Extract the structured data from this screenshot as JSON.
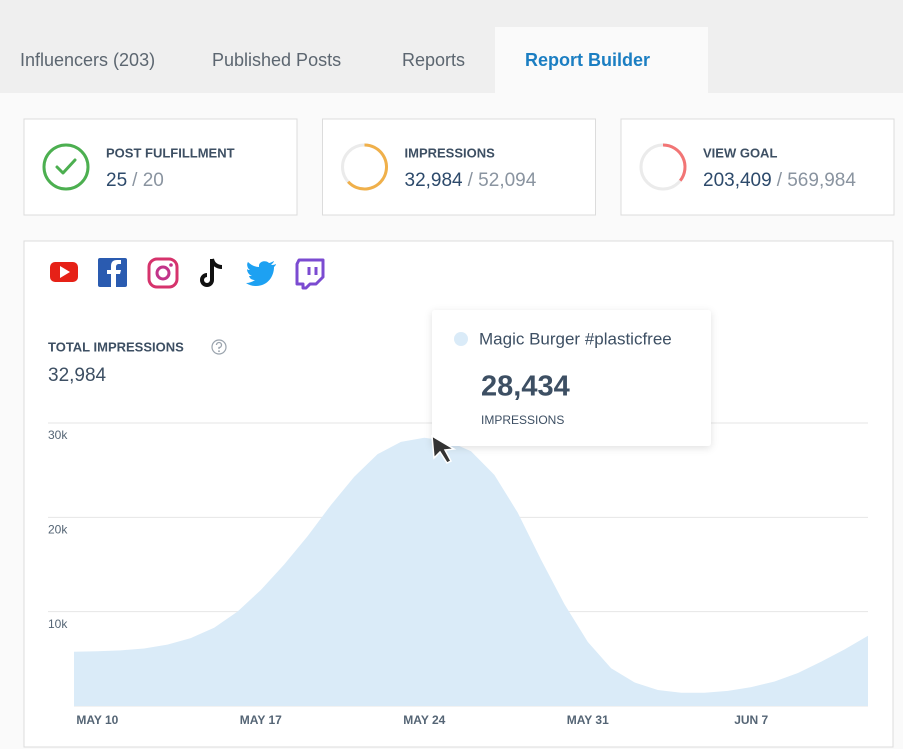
{
  "tabs": [
    {
      "label": "Influencers (203)",
      "active": false
    },
    {
      "label": "Published Posts",
      "active": false
    },
    {
      "label": "Reports",
      "active": false
    },
    {
      "label": "Report Builder",
      "active": true
    }
  ],
  "cards": [
    {
      "title": "POST FULFILLMENT",
      "value": 25,
      "goal": 20,
      "value_label": "25",
      "goal_label": "/ 20",
      "color": "#4caf50"
    },
    {
      "title": "IMPRESSIONS",
      "value": 32984,
      "goal": 52094,
      "value_label": "32,984",
      "goal_label": "/ 52,094",
      "color": "#f0b04a"
    },
    {
      "title": "VIEW GOAL",
      "value": 203409,
      "goal": 569984,
      "value_label": "203,409",
      "goal_label": "/ 569,984",
      "color": "#f27575"
    }
  ],
  "chart_data": {
    "type": "area",
    "title": "TOTAL IMPRESSIONS",
    "total": "32,984",
    "x": [
      "MAY 9",
      "MAY 10",
      "MAY 11",
      "MAY 12",
      "MAY 13",
      "MAY 14",
      "MAY 15",
      "MAY 16",
      "MAY 17",
      "MAY 18",
      "MAY 19",
      "MAY 20",
      "MAY 21",
      "MAY 22",
      "MAY 23",
      "MAY 24",
      "MAY 25",
      "MAY 26",
      "MAY 27",
      "MAY 28",
      "MAY 29",
      "MAY 30",
      "MAY 31",
      "JUN 1",
      "JUN 2",
      "JUN 3",
      "JUN 4",
      "JUN 5",
      "JUN 6",
      "JUN 7",
      "JUN 8",
      "JUN 9",
      "JUN 10",
      "JUN 11",
      "JUN 12"
    ],
    "series": [
      {
        "name": "Magic Burger #plasticfree",
        "color": "#daebf8",
        "values": [
          5750,
          5800,
          5900,
          6100,
          6500,
          7200,
          8300,
          10000,
          12300,
          15000,
          18000,
          21300,
          24300,
          26700,
          28000,
          28434,
          28100,
          27000,
          24500,
          20500,
          15500,
          10800,
          6800,
          4000,
          2500,
          1700,
          1400,
          1400,
          1600,
          2000,
          2600,
          3500,
          4700,
          6000,
          7450
        ]
      }
    ],
    "xticks": [
      "MAY 10",
      "MAY 17",
      "MAY 24",
      "MAY 31",
      "JUN 7"
    ],
    "ylim": [
      0,
      30000
    ],
    "yticks": [
      {
        "value": 10000,
        "label": "10k"
      },
      {
        "value": 20000,
        "label": "20k"
      },
      {
        "value": 30000,
        "label": "30k"
      }
    ],
    "grid": true,
    "tooltip": {
      "value": "28,434",
      "label": "IMPRESSIONS"
    }
  }
}
